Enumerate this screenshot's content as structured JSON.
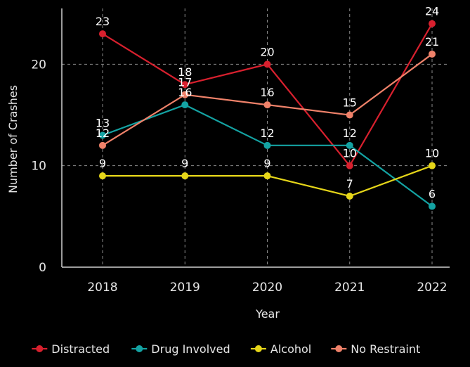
{
  "chart_data": {
    "type": "line",
    "title": "",
    "xlabel": "Year",
    "ylabel": "Number of Crashes",
    "x": [
      "2018",
      "2019",
      "2020",
      "2021",
      "2022"
    ],
    "y_ticks": [
      0,
      10,
      20
    ],
    "ylim": [
      0,
      25.5
    ],
    "grid": "dashed, y at 10 and 20, x at each year",
    "legend_position": "bottom",
    "series": [
      {
        "name": "Distracted",
        "color": "#d8202e",
        "values": [
          23,
          18,
          20,
          10,
          24
        ]
      },
      {
        "name": "Drug Involved",
        "color": "#14a3a3",
        "values": [
          13,
          16,
          12,
          12,
          6
        ]
      },
      {
        "name": "Alcohol",
        "color": "#e6d619",
        "values": [
          9,
          9,
          9,
          7,
          10
        ]
      },
      {
        "name": "No Restraint",
        "color": "#f0826a",
        "values": [
          12,
          17,
          16,
          15,
          21
        ]
      }
    ]
  }
}
